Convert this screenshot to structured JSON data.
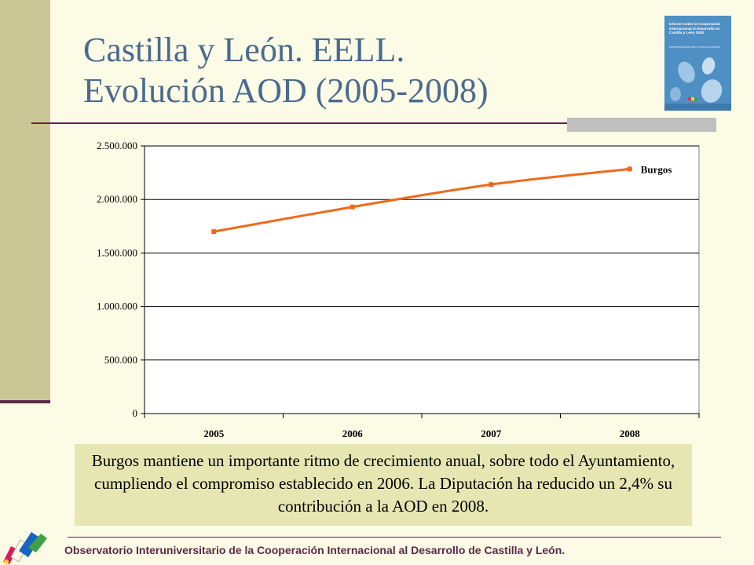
{
  "slide": {
    "title_line1": "Castilla y León. EELL.",
    "title_line2": "Evolución  AOD (2005-2008)",
    "note": "Burgos mantiene un importante ritmo de crecimiento anual, sobre todo el Ayuntamiento, cumpliendo el compromiso establecido en 2006. La Diputación ha reducido un 2,4% su contribución a la AOD en 2008.",
    "footer": "Observatorio Interuniversitario de la Cooperación Internacional al Desarrollo de Castilla y León."
  },
  "cover": {
    "title": "Informe sobre la Cooperación Internacional al Desarrollo en Castilla y León 2008",
    "subtitle": "Descentralizada ante el nuevo escenario"
  },
  "colors": {
    "line": "#ee6a1a",
    "title": "#4a6a8f",
    "accent": "#5c2748"
  },
  "chart_data": {
    "type": "line",
    "categories": [
      "2005",
      "2006",
      "2007",
      "2008"
    ],
    "series": [
      {
        "name": "Burgos",
        "values": [
          1700000,
          1930000,
          2140000,
          2285000
        ]
      }
    ],
    "ylim": [
      0,
      2500000
    ],
    "yticks": [
      0,
      500000,
      1000000,
      1500000,
      2000000,
      2500000
    ],
    "ytick_labels": [
      "0",
      "500.000",
      "1.000.000",
      "1.500.000",
      "2.000.000",
      "2.500.000"
    ],
    "grid": true,
    "legend": "inline-right"
  }
}
